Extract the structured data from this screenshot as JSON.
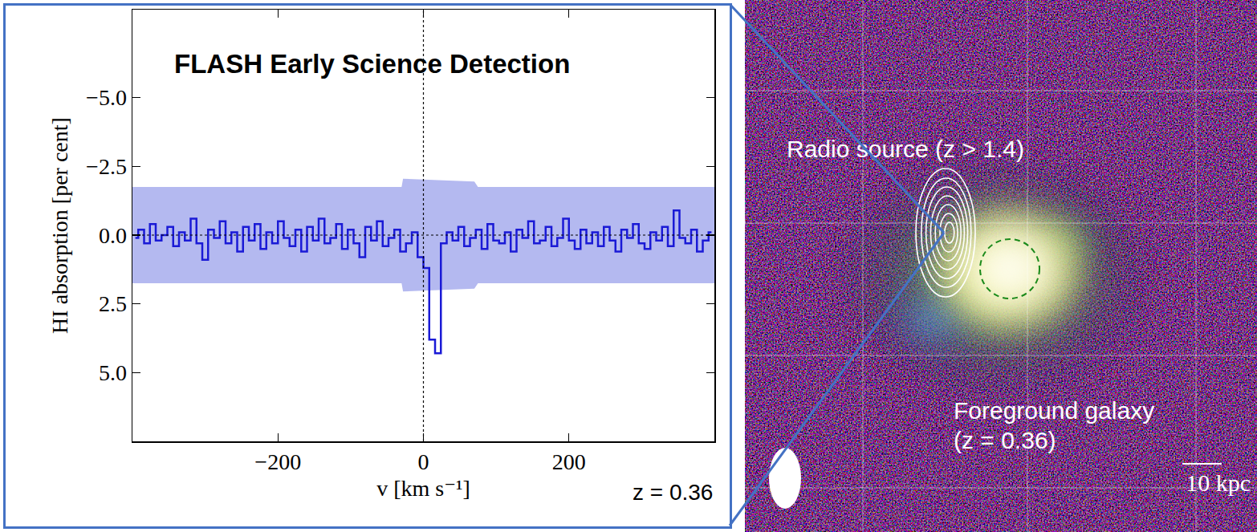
{
  "chart_data": {
    "type": "line",
    "title": "FLASH Early Science Detection",
    "x_label": "v [km s⁻¹]",
    "y_label": "HI absorption [per cent]",
    "annotation": "z = 0.36",
    "x": [
      -396,
      -388,
      -380,
      -372,
      -364,
      -356,
      -348,
      -340,
      -332,
      -324,
      -316,
      -308,
      -300,
      -292,
      -284,
      -276,
      -268,
      -260,
      -252,
      -244,
      -236,
      -228,
      -220,
      -212,
      -204,
      -196,
      -188,
      -180,
      -172,
      -164,
      -156,
      -148,
      -140,
      -132,
      -124,
      -116,
      -108,
      -100,
      -92,
      -84,
      -76,
      -68,
      -60,
      -52,
      -44,
      -36,
      -28,
      -20,
      -12,
      -4,
      4,
      12,
      20,
      28,
      36,
      44,
      52,
      60,
      68,
      76,
      84,
      92,
      100,
      108,
      116,
      124,
      132,
      140,
      148,
      156,
      164,
      172,
      180,
      188,
      196,
      204,
      212,
      220,
      228,
      236,
      244,
      252,
      260,
      268,
      276,
      284,
      292,
      300,
      308,
      316,
      324,
      332,
      340,
      348,
      356,
      364,
      372,
      380,
      388,
      396
    ],
    "values": [
      0.1,
      -0.2,
      0.3,
      -0.4,
      0.2,
      0.0,
      -0.3,
      0.4,
      -0.1,
      0.2,
      -0.6,
      0.3,
      0.9,
      -0.2,
      0.1,
      -0.5,
      0.3,
      -0.1,
      0.6,
      -0.3,
      0.2,
      -0.4,
      0.5,
      -0.1,
      0.3,
      -0.5,
      0.1,
      0.4,
      -0.2,
      0.6,
      -0.3,
      0.2,
      -0.6,
      0.3,
      0.1,
      -0.4,
      0.5,
      -0.2,
      0.3,
      0.8,
      -0.3,
      0.2,
      -0.5,
      0.4,
      0.1,
      -0.2,
      0.6,
      0.3,
      -0.1,
      0.8,
      1.2,
      3.8,
      4.3,
      0.3,
      -0.1,
      0.2,
      -0.3,
      0.4,
      0.1,
      -0.2,
      0.5,
      -0.4,
      0.2,
      0.3,
      -0.1,
      0.6,
      -0.2,
      0.1,
      -0.5,
      0.3,
      0.2,
      -0.3,
      0.4,
      0.1,
      -0.6,
      0.2,
      0.5,
      -0.2,
      0.3,
      -0.1,
      0.4,
      -0.3,
      0.2,
      0.6,
      -0.2,
      0.1,
      -0.4,
      0.3,
      0.5,
      -0.1,
      0.2,
      -0.3,
      0.4,
      -0.9,
      0.1,
      0.3,
      -0.2,
      0.6,
      0.2,
      -0.1
    ],
    "color": "#1a1ad6",
    "line_style": "steps",
    "sigma_band": {
      "x": [
        -400,
        -30,
        -28,
        70,
        75,
        400
      ],
      "upper": [
        1.75,
        1.75,
        2.05,
        1.95,
        1.75,
        1.75
      ],
      "lower": [
        -1.75,
        -1.75,
        -2.05,
        -1.95,
        -1.75,
        -1.75
      ],
      "color": "#b4b9f0"
    },
    "reference_lines": {
      "x": 0,
      "y": 0
    },
    "xlim": [
      -400,
      400
    ],
    "xticks": [
      {
        "value": -200,
        "label": "−200"
      },
      0,
      200
    ],
    "ylim": [
      7.5,
      -8.2
    ],
    "yticks": [
      {
        "value": -5,
        "label": "−5.0"
      },
      {
        "value": -2.5,
        "label": "−2.5"
      },
      {
        "value": 0,
        "label": "0.0"
      },
      {
        "value": 2.5,
        "label": "2.5"
      },
      {
        "value": 5,
        "label": "5.0"
      }
    ],
    "grid": false
  },
  "image": {
    "radio_label": "Radio source (z > 1.4)",
    "galaxy_label": [
      "Foreground galaxy",
      "(z = 0.36)"
    ],
    "scale_bar": "10 kpc"
  }
}
